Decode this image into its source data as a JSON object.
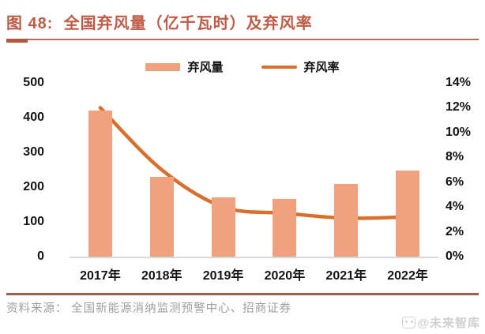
{
  "header": {
    "title": "图 48:  全国弃风量（亿千瓦时）及弃风率"
  },
  "chart_data": {
    "type": "bar+line combo",
    "categories": [
      "2017年",
      "2018年",
      "2019年",
      "2020年",
      "2021年",
      "2022年"
    ],
    "series": [
      {
        "name": "弃风量",
        "type": "bar",
        "axis": "left",
        "unit": "亿千瓦时",
        "values": [
          420,
          230,
          170,
          166,
          208,
          248
        ],
        "color": "#F2A17E"
      },
      {
        "name": "弃风率",
        "type": "line",
        "axis": "right",
        "unit": "%",
        "values": [
          12,
          7,
          4,
          3.5,
          3.1,
          3.2
        ],
        "color": "#D8702B"
      }
    ],
    "left_axis": {
      "ticks": [
        "500",
        "400",
        "300",
        "200",
        "100",
        "0"
      ],
      "min": 0,
      "max": 500
    },
    "right_axis": {
      "ticks": [
        "14%",
        "12%",
        "10%",
        "8%",
        "6%",
        "4%",
        "2%",
        "0%"
      ],
      "min": 0,
      "max": 14
    },
    "legend_position": "top",
    "grid": "off",
    "colors": {
      "bar": "#F2A17E",
      "line": "#D8702B",
      "title": "#BE5B45",
      "rule": "#A85A46",
      "baseline": "#D9D9D9"
    }
  },
  "footer": {
    "source": "资料来源： 全国新能源消纳监测预警中心、招商证券",
    "watermark": "@未来智库"
  }
}
